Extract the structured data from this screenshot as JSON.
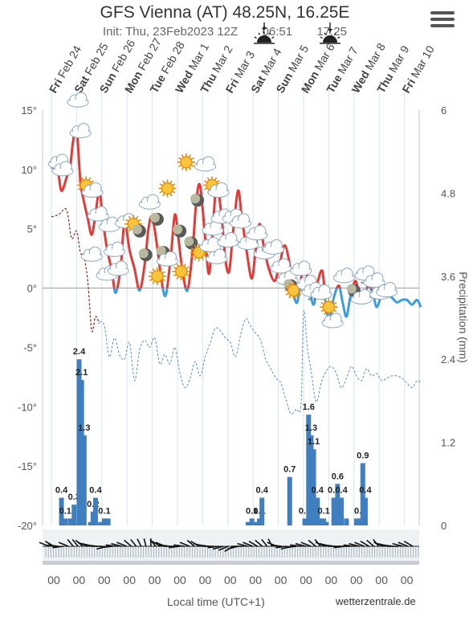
{
  "header": {
    "title": "GFS Vienna (AT) 48.25N, 16.25E",
    "init": "Init: Thu, 23Feb2023 12Z",
    "sunrise": "06:51",
    "sunset": "17:25",
    "menu_icon": "hamburger-icon"
  },
  "footer": {
    "xlabel": "Local time (UTC+1)",
    "credit": "wetterzentrale.de",
    "hour_label": "00"
  },
  "chart_data": {
    "type": "line",
    "title": "GFS Vienna (AT) 48.25N, 16.25E",
    "xlabel": "Local time (UTC+1)",
    "ylabel_right": "Precipitation (mm)",
    "days": [
      {
        "d": "Fri",
        "l": "Feb 24"
      },
      {
        "d": "Sat",
        "l": "Feb 25"
      },
      {
        "d": "Sun",
        "l": "Feb 26"
      },
      {
        "d": "Mon",
        "l": "Feb 27"
      },
      {
        "d": "Tue",
        "l": "Feb 28"
      },
      {
        "d": "Wed",
        "l": "Mar 1"
      },
      {
        "d": "Thu",
        "l": "Mar 2"
      },
      {
        "d": "Fri",
        "l": "Mar 3"
      },
      {
        "d": "Sat",
        "l": "Mar 4"
      },
      {
        "d": "Sun",
        "l": "Mar 5"
      },
      {
        "d": "Mon",
        "l": "Mar 6"
      },
      {
        "d": "Tue",
        "l": "Mar 7"
      },
      {
        "d": "Wed",
        "l": "Mar 8"
      },
      {
        "d": "Thu",
        "l": "Mar 9"
      },
      {
        "d": "Fri",
        "l": "Mar 10"
      }
    ],
    "temp_axis": {
      "min": -20,
      "max": 15,
      "ticks": [
        "15°",
        "10°",
        "5°",
        "0°",
        "-5°",
        "-10°",
        "-15°",
        "-20°"
      ]
    },
    "precip_axis": {
      "min": 0,
      "max": 6,
      "ticks": [
        "6",
        "4.8",
        "3.6",
        "2.4",
        "1.2",
        "0"
      ]
    },
    "temperature": [
      [
        0,
        10.2
      ],
      [
        0.25,
        9.8
      ],
      [
        0.4,
        8.2
      ],
      [
        0.6,
        9.3
      ],
      [
        0.75,
        10.3
      ],
      [
        0.85,
        12.2
      ],
      [
        1.0,
        13.4
      ],
      [
        1.15,
        9.0
      ],
      [
        1.3,
        7.2
      ],
      [
        1.45,
        5.8
      ],
      [
        1.6,
        4.5
      ],
      [
        1.75,
        6.2
      ],
      [
        1.9,
        8.2
      ],
      [
        2.05,
        5.6
      ],
      [
        2.2,
        3.4
      ],
      [
        2.4,
        1.4
      ],
      [
        2.55,
        -0.4
      ],
      [
        2.75,
        1.8
      ],
      [
        2.9,
        5.6
      ],
      [
        3.1,
        3.2
      ],
      [
        3.3,
        1.6
      ],
      [
        3.5,
        -0.2
      ],
      [
        3.7,
        2.0
      ],
      [
        3.85,
        5.0
      ],
      [
        4.0,
        6.0
      ],
      [
        4.2,
        3.4
      ],
      [
        4.4,
        0.2
      ],
      [
        4.55,
        -0.5
      ],
      [
        4.75,
        3.0
      ],
      [
        4.9,
        6.2
      ],
      [
        5.05,
        4.0
      ],
      [
        5.2,
        1.4
      ],
      [
        5.4,
        -0.2
      ],
      [
        5.6,
        3.2
      ],
      [
        5.75,
        7.4
      ],
      [
        5.9,
        8.6
      ],
      [
        6.1,
        4.2
      ],
      [
        6.25,
        1.2
      ],
      [
        6.4,
        4.8
      ],
      [
        6.55,
        8.8
      ],
      [
        6.75,
        6.0
      ],
      [
        6.9,
        2.4
      ],
      [
        7.05,
        1.4
      ],
      [
        7.2,
        4.6
      ],
      [
        7.4,
        8.2
      ],
      [
        7.55,
        6.0
      ],
      [
        7.75,
        3.0
      ],
      [
        7.95,
        0.8
      ],
      [
        8.1,
        3.2
      ],
      [
        8.25,
        5.4
      ],
      [
        8.4,
        3.8
      ],
      [
        8.6,
        1.8
      ],
      [
        8.85,
        0.6
      ],
      [
        9.05,
        2.0
      ],
      [
        9.25,
        3.6
      ],
      [
        9.45,
        2.0
      ],
      [
        9.6,
        -0.4
      ],
      [
        9.75,
        -1.2
      ],
      [
        9.9,
        0.8
      ],
      [
        10.05,
        1.8
      ],
      [
        10.2,
        0.2
      ],
      [
        10.4,
        -1.4
      ],
      [
        10.55,
        0.4
      ],
      [
        10.75,
        1.4
      ],
      [
        10.9,
        -1.8
      ],
      [
        11.05,
        -2.4
      ],
      [
        11.2,
        -0.8
      ],
      [
        11.4,
        0.2
      ],
      [
        11.55,
        -1.2
      ],
      [
        11.7,
        -2.4
      ],
      [
        11.85,
        -0.8
      ],
      [
        12.05,
        0.6
      ],
      [
        12.2,
        -0.4
      ],
      [
        12.4,
        -1.2
      ],
      [
        12.55,
        0.2
      ],
      [
        12.75,
        -0.4
      ],
      [
        12.9,
        -1.6
      ],
      [
        13.1,
        -0.6
      ],
      [
        13.3,
        -0.6
      ],
      [
        13.5,
        -0.8
      ],
      [
        13.7,
        -1.2
      ],
      [
        13.9,
        -1.0
      ],
      [
        14.1,
        -1.0
      ],
      [
        14.3,
        -1.4
      ],
      [
        14.5,
        -1.0
      ],
      [
        14.65,
        -1.6
      ]
    ],
    "dewpoint": [
      [
        0,
        6.0
      ],
      [
        0.3,
        6.2
      ],
      [
        0.6,
        6.6
      ],
      [
        0.8,
        4.2
      ],
      [
        1.0,
        4.8
      ],
      [
        1.15,
        3.0
      ],
      [
        1.3,
        2.6
      ],
      [
        1.45,
        0.4
      ],
      [
        1.6,
        -3.6
      ],
      [
        1.75,
        -2.4
      ],
      [
        1.9,
        -3.0
      ]
    ],
    "temp_850": [
      [
        1.9,
        -2.8
      ],
      [
        2.1,
        -3.2
      ],
      [
        2.3,
        -5.8
      ],
      [
        2.5,
        -4.2
      ],
      [
        2.7,
        -5.6
      ],
      [
        2.9,
        -6.0
      ],
      [
        3.1,
        -4.6
      ],
      [
        3.3,
        -7.8
      ],
      [
        3.5,
        -5.2
      ],
      [
        3.7,
        -4.4
      ],
      [
        3.9,
        -5.0
      ],
      [
        4.1,
        -4.2
      ],
      [
        4.3,
        -6.4
      ],
      [
        4.5,
        -5.6
      ],
      [
        4.7,
        -6.4
      ],
      [
        4.9,
        -5.0
      ],
      [
        5.1,
        -7.2
      ],
      [
        5.3,
        -8.4
      ],
      [
        5.5,
        -7.6
      ],
      [
        5.7,
        -6.2
      ],
      [
        5.9,
        -7.4
      ],
      [
        6.1,
        -5.8
      ],
      [
        6.3,
        -4.6
      ],
      [
        6.5,
        -3.4
      ],
      [
        6.7,
        -3.6
      ],
      [
        6.9,
        -4.2
      ],
      [
        7.1,
        -4.6
      ],
      [
        7.3,
        -5.8
      ],
      [
        7.5,
        -4.0
      ],
      [
        7.7,
        -2.6
      ],
      [
        7.9,
        -3.2
      ],
      [
        8.1,
        -3.8
      ],
      [
        8.3,
        -4.4
      ],
      [
        8.5,
        -6.0
      ],
      [
        8.7,
        -6.8
      ],
      [
        8.9,
        -7.6
      ],
      [
        9.1,
        -8.0
      ],
      [
        9.3,
        -9.4
      ],
      [
        9.5,
        -10.6
      ],
      [
        9.7,
        -10.2
      ],
      [
        9.9,
        -9.8
      ],
      [
        10.0,
        -2.0
      ],
      [
        10.15,
        -5.0
      ],
      [
        10.3,
        -7.0
      ],
      [
        10.5,
        -9.6
      ],
      [
        10.7,
        -8.0
      ],
      [
        10.9,
        -7.0
      ],
      [
        11.1,
        -6.6
      ],
      [
        11.3,
        -7.2
      ],
      [
        11.5,
        -8.4
      ],
      [
        11.7,
        -7.6
      ],
      [
        11.9,
        -6.6
      ],
      [
        12.1,
        -7.4
      ],
      [
        12.3,
        -7.8
      ],
      [
        12.5,
        -6.8
      ],
      [
        12.7,
        -7.4
      ],
      [
        12.9,
        -7.2
      ],
      [
        13.1,
        -7.8
      ],
      [
        13.3,
        -7.6
      ],
      [
        13.5,
        -7.4
      ],
      [
        13.7,
        -7.4
      ],
      [
        13.9,
        -7.6
      ],
      [
        14.1,
        -8.0
      ],
      [
        14.3,
        -8.4
      ],
      [
        14.5,
        -7.8
      ],
      [
        14.65,
        -8.0
      ]
    ],
    "precipitation": [
      {
        "x": 0.4,
        "v": 0.4,
        "label": "0.4"
      },
      {
        "x": 0.55,
        "v": 0.1,
        "label": "0.1"
      },
      {
        "x": 0.75,
        "v": 0.1
      },
      {
        "x": 0.9,
        "v": 0.3,
        "label": "0.3"
      },
      {
        "x": 1.1,
        "v": 2.4,
        "label": "2.4"
      },
      {
        "x": 1.2,
        "v": 2.1,
        "label": "2.1"
      },
      {
        "x": 1.3,
        "v": 1.3,
        "label": "1.3"
      },
      {
        "x": 1.55,
        "v": 0.05
      },
      {
        "x": 1.65,
        "v": 0.2,
        "label": "0.2"
      },
      {
        "x": 1.75,
        "v": 0.4,
        "label": "0.4"
      },
      {
        "x": 1.95,
        "v": 0.05
      },
      {
        "x": 2.1,
        "v": 0.1,
        "label": "0.1"
      },
      {
        "x": 2.25,
        "v": 0.1
      },
      {
        "x": 7.8,
        "v": 0.05
      },
      {
        "x": 7.95,
        "v": 0.1,
        "label": "0.1"
      },
      {
        "x": 8.1,
        "v": 0.05
      },
      {
        "x": 8.25,
        "v": 0.1,
        "label": "0.1"
      },
      {
        "x": 8.35,
        "v": 0.4,
        "label": "0.4"
      },
      {
        "x": 9.45,
        "v": 0.7,
        "label": "0.7"
      },
      {
        "x": 10.05,
        "v": 0.1,
        "label": "0.1"
      },
      {
        "x": 10.2,
        "v": 1.6,
        "label": "1.6"
      },
      {
        "x": 10.3,
        "v": 1.3,
        "label": "1.3"
      },
      {
        "x": 10.4,
        "v": 1.1,
        "label": "1.1"
      },
      {
        "x": 10.55,
        "v": 0.4,
        "label": "0.4"
      },
      {
        "x": 10.65,
        "v": 0.1
      },
      {
        "x": 10.8,
        "v": 0.1,
        "label": "0.1"
      },
      {
        "x": 10.9,
        "v": 0.05
      },
      {
        "x": 11.2,
        "v": 0.4,
        "label": "0.4"
      },
      {
        "x": 11.35,
        "v": 0.6,
        "label": "0.6"
      },
      {
        "x": 11.5,
        "v": 0.4,
        "label": "0.4"
      },
      {
        "x": 11.7,
        "v": 0.1
      },
      {
        "x": 12.1,
        "v": 0.1
      },
      {
        "x": 12.25,
        "v": 0.1,
        "label": "0.1"
      },
      {
        "x": 12.35,
        "v": 0.9,
        "label": "0.9"
      },
      {
        "x": 12.45,
        "v": 0.4,
        "label": "0.4"
      }
    ],
    "weather_icons": [
      {
        "x": 1.05,
        "t": 15.8,
        "k": "cloud"
      },
      {
        "x": 0.3,
        "t": 10.6,
        "k": "cloud"
      },
      {
        "x": 0.45,
        "t": 10.0,
        "k": "cloud"
      },
      {
        "x": 1.15,
        "t": 13.2,
        "k": "cloud"
      },
      {
        "x": 1.5,
        "t": 8.4,
        "k": "sun-cloud"
      },
      {
        "x": 1.85,
        "t": 6.2,
        "k": "cloud"
      },
      {
        "x": 2.3,
        "t": 5.3,
        "k": "cloud"
      },
      {
        "x": 1.6,
        "t": 2.8,
        "k": "cloud"
      },
      {
        "x": 2.5,
        "t": 3.2,
        "k": "cloud"
      },
      {
        "x": 2.95,
        "t": 5.6,
        "k": "cloud"
      },
      {
        "x": 3.25,
        "t": 5.4,
        "k": "sun"
      },
      {
        "x": 3.5,
        "t": 4.8,
        "k": "moon"
      },
      {
        "x": 3.75,
        "t": 2.8,
        "k": "moon"
      },
      {
        "x": 2.2,
        "t": 1.2,
        "k": "cloud"
      },
      {
        "x": 2.65,
        "t": 1.6,
        "k": "cloud"
      },
      {
        "x": 3.9,
        "t": 7.2,
        "k": "cloud"
      },
      {
        "x": 4.6,
        "t": 8.4,
        "k": "sun"
      },
      {
        "x": 4.2,
        "t": 5.8,
        "k": "moon"
      },
      {
        "x": 4.45,
        "t": 3.0,
        "k": "moon"
      },
      {
        "x": 4.2,
        "t": 1.0,
        "k": "sun"
      },
      {
        "x": 5.35,
        "t": 10.6,
        "k": "sun"
      },
      {
        "x": 5.1,
        "t": 4.8,
        "k": "moon"
      },
      {
        "x": 5.15,
        "t": 1.4,
        "k": "sun"
      },
      {
        "x": 4.6,
        "t": 2.4,
        "k": "cloud"
      },
      {
        "x": 5.8,
        "t": 7.4,
        "k": "moon"
      },
      {
        "x": 6.1,
        "t": 10.4,
        "k": "cloud"
      },
      {
        "x": 6.5,
        "t": 8.4,
        "k": "sun-cloud"
      },
      {
        "x": 5.55,
        "t": 3.8,
        "k": "moon"
      },
      {
        "x": 5.85,
        "t": 3.0,
        "k": "sun"
      },
      {
        "x": 6.4,
        "t": 5.0,
        "k": "cloud"
      },
      {
        "x": 6.75,
        "t": 6.0,
        "k": "cloud"
      },
      {
        "x": 6.3,
        "t": 3.6,
        "k": "cloud"
      },
      {
        "x": 6.55,
        "t": 2.6,
        "k": "cloud"
      },
      {
        "x": 7.0,
        "t": 4.0,
        "k": "cloud"
      },
      {
        "x": 7.2,
        "t": 6.0,
        "k": "cloud"
      },
      {
        "x": 7.5,
        "t": 5.6,
        "k": "cloud"
      },
      {
        "x": 7.8,
        "t": 3.8,
        "k": "cloud"
      },
      {
        "x": 8.15,
        "t": 4.6,
        "k": "cloud"
      },
      {
        "x": 8.45,
        "t": 3.0,
        "k": "cloud"
      },
      {
        "x": 8.8,
        "t": 3.4,
        "k": "cloud"
      },
      {
        "x": 9.1,
        "t": 1.8,
        "k": "cloud"
      },
      {
        "x": 9.35,
        "t": 0.8,
        "k": "cloud"
      },
      {
        "x": 9.5,
        "t": 0.2,
        "k": "moon"
      },
      {
        "x": 9.6,
        "t": -0.2,
        "k": "sun"
      },
      {
        "x": 9.9,
        "t": 1.6,
        "k": "cloud"
      },
      {
        "x": 10.15,
        "t": 0.4,
        "k": "cloud"
      },
      {
        "x": 10.35,
        "t": -0.2,
        "k": "snow"
      },
      {
        "x": 10.7,
        "t": -0.4,
        "k": "cloud"
      },
      {
        "x": 11.0,
        "t": -1.6,
        "k": "sun"
      },
      {
        "x": 11.15,
        "t": -2.8,
        "k": "cloud"
      },
      {
        "x": 11.6,
        "t": 1.0,
        "k": "cloud"
      },
      {
        "x": 12.0,
        "t": -0.2,
        "k": "moon"
      },
      {
        "x": 12.3,
        "t": -0.8,
        "k": "cloud"
      },
      {
        "x": 12.45,
        "t": 1.2,
        "k": "snow"
      },
      {
        "x": 12.8,
        "t": 0.6,
        "k": "snow"
      },
      {
        "x": 13.05,
        "t": -0.4,
        "k": "cloud"
      },
      {
        "x": 13.3,
        "t": -0.2,
        "k": "cloud"
      }
    ],
    "wind_dir_deg": [
      300,
      310,
      280,
      260,
      300,
      330,
      330,
      320,
      300,
      290,
      280,
      270,
      250,
      260,
      280,
      290,
      300,
      320,
      330,
      340,
      350,
      0,
      330,
      310,
      300,
      280,
      270,
      260,
      280,
      300,
      320,
      310,
      290,
      280,
      270,
      260,
      250,
      240,
      230,
      250,
      270,
      290,
      300,
      310,
      320,
      330,
      340,
      300,
      280,
      260,
      250,
      260,
      280,
      290,
      300,
      320,
      330,
      300,
      290,
      280,
      270,
      260,
      270,
      280,
      290,
      300,
      310,
      320,
      330,
      300,
      290,
      280,
      270,
      290,
      300,
      310
    ]
  }
}
